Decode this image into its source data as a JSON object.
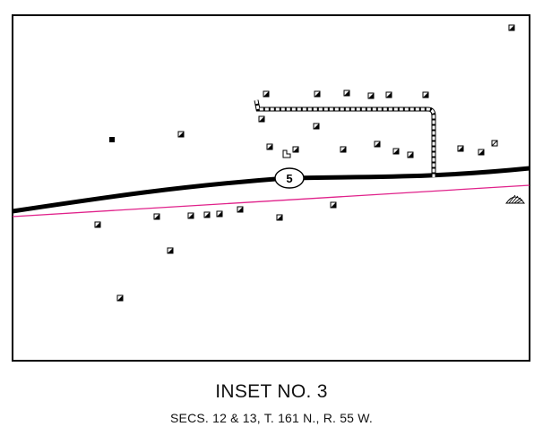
{
  "title": "INSET NO. 3",
  "subtitle": "SECS. 12 & 13,  T. 161 N., R. 55 W.",
  "route": {
    "number": "5"
  },
  "colors": {
    "frame": "#000000",
    "road": "#000000",
    "boundary": "#e0218a",
    "symbol": "#000000",
    "background": "#ffffff"
  },
  "legend_symbols": [
    "dwelling",
    "dwelling-solid",
    "farmstead-outline",
    "diagonal-hatched-dwelling",
    "hill-shade"
  ]
}
